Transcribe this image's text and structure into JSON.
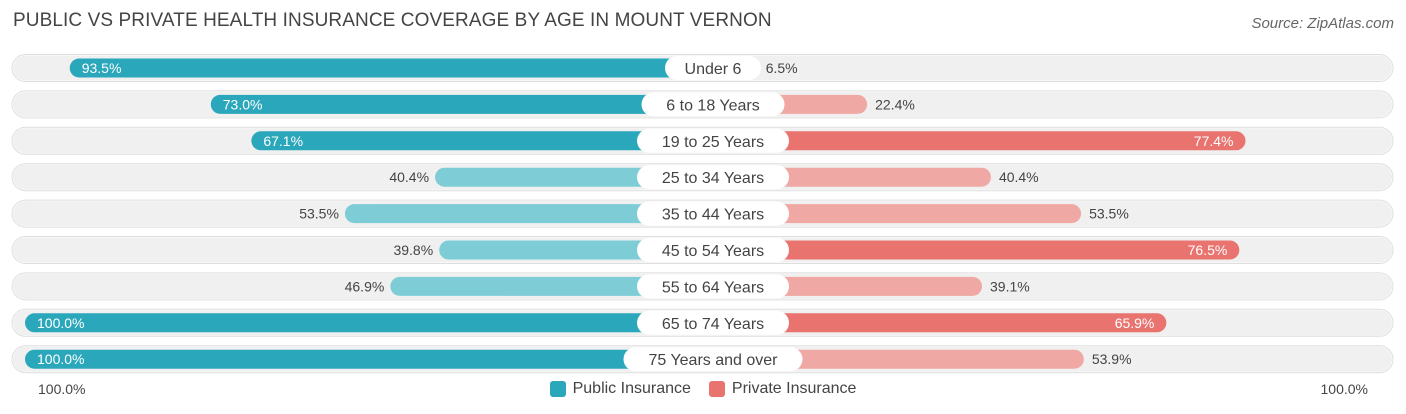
{
  "title": "PUBLIC VS PRIVATE HEALTH INSURANCE COVERAGE BY AGE IN MOUNT VERNON",
  "source": "Source: ZipAtlas.com",
  "colors": {
    "public_dark": "#2aa7ba",
    "public_light": "#7ecdd6",
    "private_dark": "#e8736f",
    "private_light": "#f0a8a4",
    "row_bg": "#f0f0f0"
  },
  "axis": {
    "left_label": "100.0%",
    "right_label": "100.0%"
  },
  "legend": {
    "public_label": "Public Insurance",
    "private_label": "Private Insurance"
  },
  "chart_data": {
    "type": "bar",
    "orientation": "horizontal-diverging",
    "categories": [
      "Under 6",
      "6 to 18 Years",
      "19 to 25 Years",
      "25 to 34 Years",
      "35 to 44 Years",
      "45 to 54 Years",
      "55 to 64 Years",
      "65 to 74 Years",
      "75 Years and over"
    ],
    "series": [
      {
        "name": "Public Insurance",
        "values": [
          93.5,
          73.0,
          67.1,
          40.4,
          53.5,
          39.8,
          46.9,
          100.0,
          100.0
        ],
        "labels": [
          "93.5%",
          "73.0%",
          "67.1%",
          "40.4%",
          "53.5%",
          "39.8%",
          "46.9%",
          "100.0%",
          "100.0%"
        ]
      },
      {
        "name": "Private Insurance",
        "values": [
          6.5,
          22.4,
          77.4,
          40.4,
          53.5,
          76.5,
          39.1,
          65.9,
          53.9
        ],
        "labels": [
          "6.5%",
          "22.4%",
          "77.4%",
          "40.4%",
          "53.5%",
          "76.5%",
          "39.1%",
          "65.9%",
          "53.9%"
        ]
      }
    ],
    "xlim": [
      0,
      100
    ],
    "legend_position": "bottom-center"
  }
}
